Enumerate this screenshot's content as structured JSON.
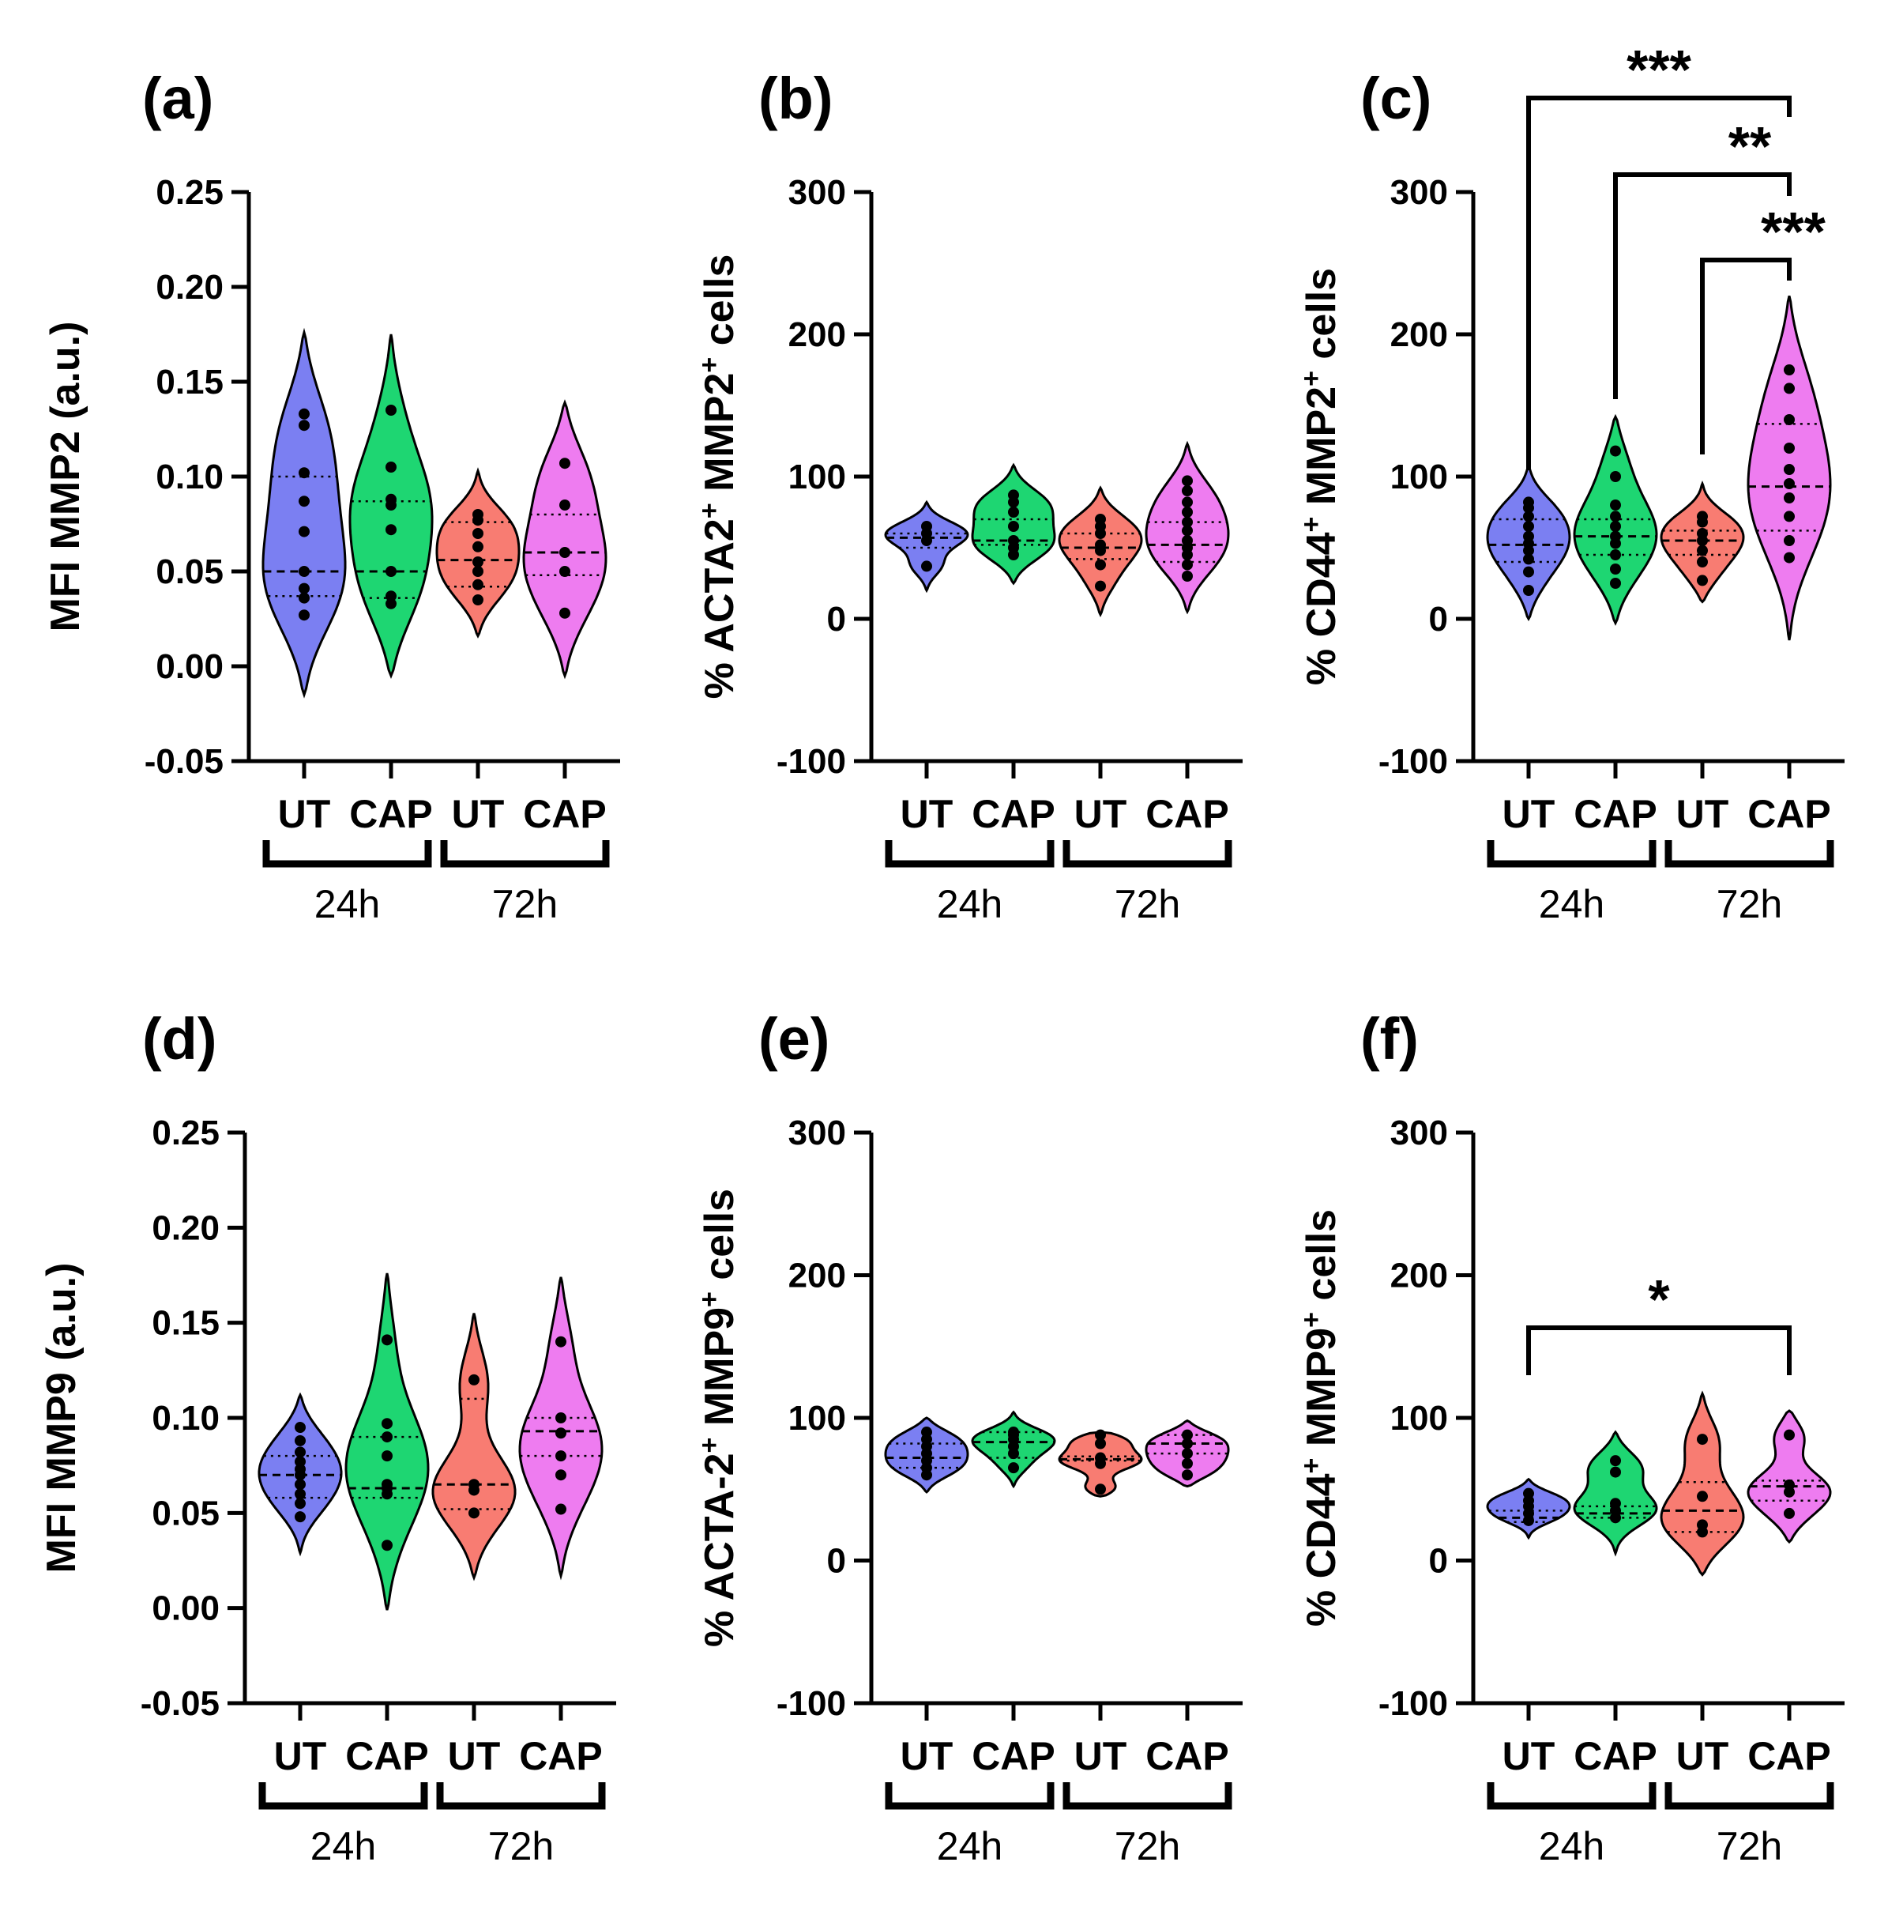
{
  "colors": {
    "ut24": "#7b7ff2",
    "cap24": "#1ed672",
    "ut72": "#f87c72",
    "cap72": "#ee7cf0"
  },
  "chart_data": [
    {
      "id": "a",
      "type": "violin",
      "panel_label": "(a)",
      "ylabel": "MFI MMP2 (a.u.)",
      "ylim": [
        -0.05,
        0.25
      ],
      "ticks": [
        "0.25",
        "0.20",
        "0.15",
        "0.10",
        "0.05",
        "0.00",
        "-0.05"
      ],
      "groups": [
        "UT",
        "CAP",
        "UT",
        "CAP"
      ],
      "timepoints": [
        "24h",
        "72h"
      ],
      "series": [
        {
          "name": "UT 24h",
          "median": 0.05,
          "q1": 0.037,
          "q3": 0.1,
          "min": -0.015,
          "max": 0.176,
          "points": [
            0.027,
            0.036,
            0.041,
            0.05,
            0.071,
            0.087,
            0.102,
            0.127,
            0.133
          ]
        },
        {
          "name": "CAP 24h",
          "median": 0.05,
          "q1": 0.036,
          "q3": 0.087,
          "min": -0.005,
          "max": 0.175,
          "points": [
            0.033,
            0.037,
            0.05,
            0.072,
            0.085,
            0.088,
            0.105,
            0.135
          ]
        },
        {
          "name": "UT 72h",
          "median": 0.056,
          "q1": 0.042,
          "q3": 0.076,
          "min": 0.016,
          "max": 0.103,
          "points": [
            0.035,
            0.043,
            0.05,
            0.055,
            0.063,
            0.07,
            0.077,
            0.08
          ]
        },
        {
          "name": "CAP 72h",
          "median": 0.06,
          "q1": 0.048,
          "q3": 0.08,
          "min": -0.005,
          "max": 0.139,
          "points": [
            0.028,
            0.05,
            0.06,
            0.085,
            0.107
          ]
        }
      ],
      "significance": []
    },
    {
      "id": "b",
      "type": "violin",
      "panel_label": "(b)",
      "ylabel": "% ACTA2+ MMP2+ cells",
      "ylim": [
        -100,
        300
      ],
      "ticks": [
        "300",
        "200",
        "100",
        "0",
        "-100"
      ],
      "groups": [
        "UT",
        "CAP",
        "UT",
        "CAP"
      ],
      "timepoints": [
        "24h",
        "72h"
      ],
      "series": [
        {
          "name": "UT 24h",
          "median": 57,
          "q1": 50,
          "q3": 60,
          "min": 20,
          "max": 82,
          "points": [
            37,
            55,
            60,
            65
          ]
        },
        {
          "name": "CAP 24h",
          "median": 55,
          "q1": 52,
          "q3": 70,
          "min": 25,
          "max": 108,
          "points": [
            45,
            50,
            55,
            65,
            75,
            82,
            87
          ]
        },
        {
          "name": "UT 72h",
          "median": 50,
          "q1": 42,
          "q3": 60,
          "min": 3,
          "max": 92,
          "points": [
            23,
            38,
            48,
            52,
            60,
            65,
            70
          ]
        },
        {
          "name": "CAP 72h",
          "median": 52,
          "q1": 40,
          "q3": 68,
          "min": 5,
          "max": 123,
          "points": [
            30,
            38,
            45,
            50,
            55,
            62,
            68,
            75,
            82,
            90,
            97
          ]
        }
      ],
      "significance": []
    },
    {
      "id": "c",
      "type": "violin",
      "panel_label": "(c)",
      "ylabel": "% CD44+ MMP2+ cells",
      "ylim": [
        -100,
        300
      ],
      "ticks": [
        "300",
        "200",
        "100",
        "0",
        "-100"
      ],
      "groups": [
        "UT",
        "CAP",
        "UT",
        "CAP"
      ],
      "timepoints": [
        "24h",
        "72h"
      ],
      "series": [
        {
          "name": "UT 24h",
          "median": 52,
          "q1": 40,
          "q3": 70,
          "min": 0,
          "max": 107,
          "points": [
            20,
            33,
            42,
            48,
            53,
            58,
            65,
            72,
            78,
            82
          ]
        },
        {
          "name": "CAP 24h",
          "median": 58,
          "q1": 45,
          "q3": 70,
          "min": -3,
          "max": 142,
          "points": [
            25,
            35,
            45,
            53,
            58,
            65,
            72,
            80,
            100,
            118
          ]
        },
        {
          "name": "UT 72h",
          "median": 55,
          "q1": 45,
          "q3": 62,
          "min": 12,
          "max": 95,
          "points": [
            27,
            40,
            48,
            55,
            60,
            68,
            72
          ]
        },
        {
          "name": "CAP 72h",
          "median": 93,
          "q1": 62,
          "q3": 137,
          "min": -15,
          "max": 227,
          "points": [
            43,
            55,
            72,
            85,
            95,
            105,
            120,
            140,
            162,
            175
          ]
        }
      ],
      "significance": [
        {
          "label": "***",
          "from": 0,
          "to": 3
        },
        {
          "label": "**",
          "from": 1,
          "to": 3
        },
        {
          "label": "***",
          "from": 2,
          "to": 3
        }
      ]
    },
    {
      "id": "d",
      "type": "violin",
      "panel_label": "(d)",
      "ylabel": "MFI MMP9 (a.u.)",
      "ylim": [
        -0.05,
        0.25
      ],
      "ticks": [
        "0.25",
        "0.20",
        "0.15",
        "0.10",
        "0.05",
        "0.00",
        "-0.05"
      ],
      "groups": [
        "UT",
        "CAP",
        "UT",
        "CAP"
      ],
      "timepoints": [
        "24h",
        "72h"
      ],
      "series": [
        {
          "name": "UT 24h",
          "median": 0.07,
          "q1": 0.058,
          "q3": 0.08,
          "min": 0.029,
          "max": 0.112,
          "points": [
            0.048,
            0.055,
            0.06,
            0.065,
            0.07,
            0.073,
            0.077,
            0.082,
            0.088,
            0.095
          ]
        },
        {
          "name": "CAP 24h",
          "median": 0.063,
          "q1": 0.058,
          "q3": 0.09,
          "min": -0.001,
          "max": 0.176,
          "points": [
            0.033,
            0.06,
            0.063,
            0.065,
            0.08,
            0.09,
            0.097,
            0.141
          ]
        },
        {
          "name": "UT 72h",
          "median": 0.065,
          "q1": 0.052,
          "q3": 0.11,
          "min": 0.016,
          "max": 0.155,
          "points": [
            0.05,
            0.062,
            0.065,
            0.12
          ]
        },
        {
          "name": "CAP 72h",
          "median": 0.093,
          "q1": 0.08,
          "q3": 0.1,
          "min": 0.017,
          "max": 0.174,
          "points": [
            0.052,
            0.07,
            0.08,
            0.092,
            0.1,
            0.14
          ]
        }
      ],
      "significance": []
    },
    {
      "id": "e",
      "type": "violin",
      "panel_label": "(e)",
      "ylabel": "% ACTA-2+ MMP9+ cells",
      "ylim": [
        -100,
        300
      ],
      "ticks": [
        "300",
        "200",
        "100",
        "0",
        "-100"
      ],
      "groups": [
        "UT",
        "CAP",
        "UT",
        "CAP"
      ],
      "timepoints": [
        "24h",
        "72h"
      ],
      "series": [
        {
          "name": "UT 24h",
          "median": 72,
          "q1": 65,
          "q3": 82,
          "min": 48,
          "max": 100,
          "points": [
            60,
            65,
            70,
            75,
            80,
            85,
            90
          ]
        },
        {
          "name": "CAP 24h",
          "median": 83,
          "q1": 72,
          "q3": 90,
          "min": 52,
          "max": 104,
          "points": [
            65,
            75,
            80,
            85,
            88,
            90
          ]
        },
        {
          "name": "UT 72h",
          "median": 71,
          "q1": 70,
          "q3": 73,
          "min": 45,
          "max": 90,
          "points": [
            50,
            68,
            72,
            82,
            88
          ]
        },
        {
          "name": "CAP 72h",
          "median": 82,
          "q1": 75,
          "q3": 88,
          "min": 52,
          "max": 98,
          "points": [
            60,
            68,
            75,
            82,
            88
          ]
        }
      ],
      "significance": []
    },
    {
      "id": "f",
      "type": "violin",
      "panel_label": "(f)",
      "ylabel": "% CD44+ MMP9+ cells",
      "ylim": [
        -100,
        300
      ],
      "ticks": [
        "300",
        "200",
        "100",
        "0",
        "-100"
      ],
      "groups": [
        "UT",
        "CAP",
        "UT",
        "CAP"
      ],
      "timepoints": [
        "24h",
        "72h"
      ],
      "series": [
        {
          "name": "UT 24h",
          "median": 30,
          "q1": 27,
          "q3": 35,
          "min": 16,
          "max": 57,
          "points": [
            28,
            33,
            38,
            42,
            47
          ]
        },
        {
          "name": "CAP 24h",
          "median": 33,
          "q1": 30,
          "q3": 38,
          "min": 5,
          "max": 90,
          "points": [
            30,
            35,
            40,
            62,
            70
          ]
        },
        {
          "name": "UT 72h",
          "median": 35,
          "q1": 20,
          "q3": 55,
          "min": -10,
          "max": 117,
          "points": [
            20,
            25,
            45,
            85
          ]
        },
        {
          "name": "CAP 72h",
          "median": 52,
          "q1": 42,
          "q3": 56,
          "min": 13,
          "max": 105,
          "points": [
            33,
            48,
            53,
            88
          ]
        }
      ],
      "significance": [
        {
          "label": "*",
          "from": 0,
          "to": 3
        }
      ]
    }
  ]
}
